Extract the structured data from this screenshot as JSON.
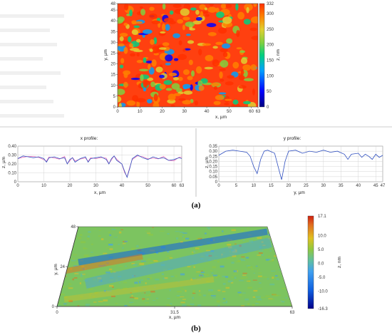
{
  "colors": {
    "heatmap_scale": [
      "#000080",
      "#0000ff",
      "#00a0ff",
      "#00d080",
      "#80d040",
      "#e0d030",
      "#ff8000",
      "#ff3000"
    ],
    "surface_scale": [
      "#00008b",
      "#1060e0",
      "#40a0f0",
      "#60c0a0",
      "#90c840",
      "#e0c020",
      "#e07020",
      "#d02010"
    ],
    "profile_line": "#3050c0",
    "profile_line_x2": "#e040a0"
  },
  "panel_a": {
    "caption": "(a)",
    "map": {
      "x_axis_label": "x, µm",
      "y_axis_label": "y, µm",
      "x_ticks": [
        "0",
        "10",
        "20",
        "30",
        "40",
        "50",
        "60",
        "63"
      ],
      "y_ticks": [
        "0",
        "5",
        "10",
        "15",
        "20",
        "25",
        "30",
        "35",
        "40",
        "45",
        "48"
      ],
      "colorbar_label": "z, nm",
      "colorbar_ticks": [
        "332",
        "300",
        "250",
        "200",
        "150",
        "100",
        "50",
        "0"
      ]
    }
  },
  "panel_b": {
    "caption": "(b)",
    "x_axis_label": "x, µm",
    "y_axis_label": "y, µm",
    "x_ticks": [
      "0",
      "31.5",
      "63"
    ],
    "y_ticks": [
      "0",
      "24",
      "48"
    ],
    "colorbar_label": "z, nm",
    "colorbar_ticks": [
      "17.1",
      "10.0",
      "5.0",
      "0.0",
      "-5.0",
      "-10.0",
      "-16.3"
    ]
  },
  "chart_data": [
    {
      "type": "heatmap",
      "title": "",
      "xlabel": "x, µm",
      "ylabel": "y, µm",
      "xlim": [
        0,
        63
      ],
      "ylim": [
        0,
        48
      ],
      "zlabel": "z, nm",
      "zlim": [
        0,
        332
      ]
    },
    {
      "type": "line",
      "title": "x profile:",
      "xlabel": "x, µm",
      "ylabel": "z, µm",
      "xlim": [
        0,
        63
      ],
      "ylim": [
        0,
        0.4
      ],
      "x_ticks": [
        "0",
        "10",
        "20",
        "30",
        "40",
        "50",
        "60",
        "63"
      ],
      "y_ticks": [
        "0",
        "0.10",
        "0.20",
        "0.30",
        "0.40"
      ],
      "grid": true,
      "series": [
        {
          "x": [
            0,
            2,
            4,
            6,
            8,
            10,
            11,
            12,
            14,
            16,
            18,
            19,
            20,
            21,
            22,
            24,
            26,
            27,
            28,
            30,
            32,
            34,
            35,
            36,
            37,
            38,
            40,
            41,
            42,
            43,
            44,
            46,
            48,
            50,
            52,
            54,
            56,
            58,
            60,
            62,
            63
          ],
          "y": [
            0.26,
            0.29,
            0.28,
            0.27,
            0.28,
            0.26,
            0.22,
            0.27,
            0.28,
            0.26,
            0.27,
            0.2,
            0.25,
            0.27,
            0.22,
            0.26,
            0.28,
            0.22,
            0.26,
            0.27,
            0.28,
            0.25,
            0.2,
            0.26,
            0.29,
            0.24,
            0.2,
            0.12,
            0.05,
            0.15,
            0.26,
            0.3,
            0.27,
            0.25,
            0.28,
            0.26,
            0.27,
            0.24,
            0.25,
            0.27,
            0.26
          ]
        }
      ]
    },
    {
      "type": "line",
      "title": "y profile:",
      "xlabel": "y, µm",
      "ylabel": "z, µm",
      "xlim": [
        0,
        47
      ],
      "ylim": [
        0,
        0.35
      ],
      "x_ticks": [
        "0",
        "5",
        "10",
        "15",
        "20",
        "25",
        "30",
        "35",
        "40",
        "45",
        "47"
      ],
      "y_ticks": [
        "0",
        "0.05",
        "0.10",
        "0.15",
        "0.20",
        "0.25",
        "0.30",
        "0.35"
      ],
      "grid": true,
      "series": [
        {
          "x": [
            0,
            2,
            4,
            6,
            8,
            9,
            10,
            11,
            12,
            13,
            14,
            16,
            17,
            18,
            19,
            20,
            22,
            24,
            26,
            28,
            30,
            32,
            34,
            36,
            37,
            38,
            40,
            41,
            42,
            43,
            44,
            45,
            46,
            47
          ],
          "y": [
            0.26,
            0.3,
            0.31,
            0.3,
            0.29,
            0.25,
            0.15,
            0.08,
            0.22,
            0.3,
            0.31,
            0.28,
            0.15,
            0.02,
            0.2,
            0.3,
            0.31,
            0.28,
            0.3,
            0.29,
            0.31,
            0.29,
            0.3,
            0.27,
            0.22,
            0.27,
            0.28,
            0.24,
            0.27,
            0.25,
            0.22,
            0.27,
            0.24,
            0.26
          ]
        }
      ]
    },
    {
      "type": "heatmap",
      "title": "",
      "xlabel": "x, µm",
      "ylabel": "y, µm",
      "xlim": [
        0,
        63
      ],
      "ylim": [
        0,
        48
      ],
      "zlabel": "z, nm",
      "zlim": [
        -16.3,
        17.1
      ]
    }
  ]
}
